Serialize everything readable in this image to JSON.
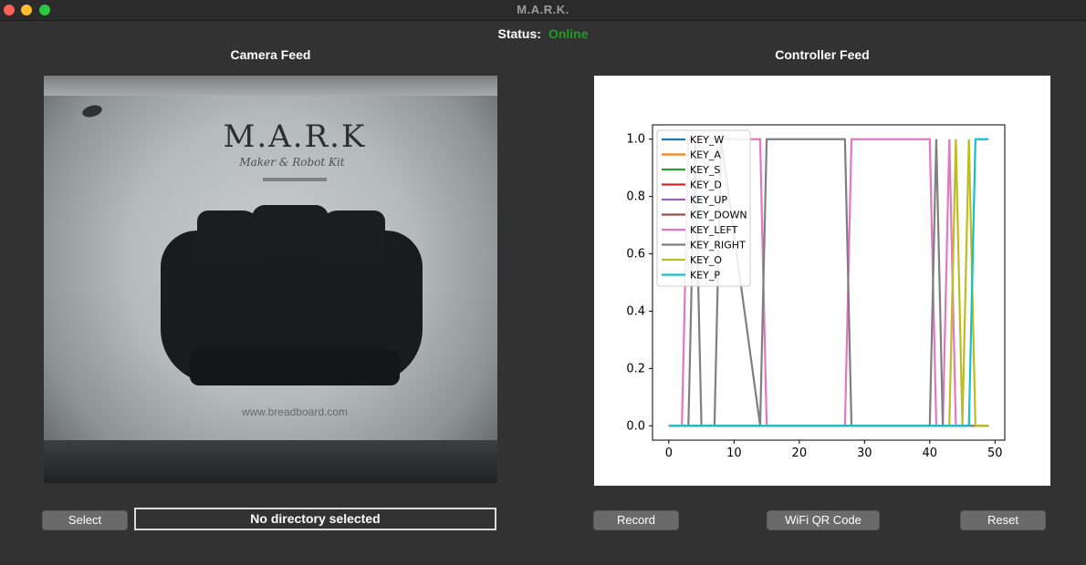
{
  "window": {
    "title": "M.A.R.K."
  },
  "status": {
    "label": "Status:",
    "value": "Online",
    "value_color": "#1f9d1f"
  },
  "camera": {
    "title": "Camera Feed",
    "scene": {
      "brand": "M.A.R.K",
      "subtitle": "Maker & Robot Kit",
      "url": "www.breadboard.com"
    }
  },
  "controller": {
    "title": "Controller Feed"
  },
  "buttons": {
    "select": "Select",
    "directory": "No directory selected",
    "record": "Record",
    "wifi_qr": "WiFi QR Code",
    "reset": "Reset"
  },
  "chart_data": {
    "type": "line",
    "xlim": [
      -2.5,
      51.5
    ],
    "ylim": [
      -0.05,
      1.05
    ],
    "xticks": [
      0,
      10,
      20,
      30,
      40,
      50
    ],
    "yticks": [
      0.0,
      0.2,
      0.4,
      0.6,
      0.8,
      1.0
    ],
    "legend_position": "upper-left",
    "series": [
      {
        "name": "KEY_W",
        "color": "#1f77b4",
        "x": [
          0,
          49
        ],
        "y": [
          0,
          0
        ]
      },
      {
        "name": "KEY_A",
        "color": "#ff7f0e",
        "x": [
          0,
          49
        ],
        "y": [
          0,
          0
        ]
      },
      {
        "name": "KEY_S",
        "color": "#2ca02c",
        "x": [
          0,
          49
        ],
        "y": [
          0,
          0
        ]
      },
      {
        "name": "KEY_D",
        "color": "#d62728",
        "x": [
          0,
          49
        ],
        "y": [
          0,
          0
        ]
      },
      {
        "name": "KEY_UP",
        "color": "#9467bd",
        "x": [
          0,
          49
        ],
        "y": [
          0,
          0
        ]
      },
      {
        "name": "KEY_DOWN",
        "color": "#8c564b",
        "x": [
          0,
          49
        ],
        "y": [
          0,
          0
        ]
      },
      {
        "name": "KEY_LEFT",
        "color": "#e377c2",
        "x": [
          0,
          2,
          3,
          14,
          15,
          27,
          28,
          40,
          41,
          42,
          43,
          44,
          45,
          49
        ],
        "y": [
          0,
          0,
          1,
          1,
          0,
          0,
          1,
          1,
          0,
          0,
          1,
          0,
          0,
          0
        ]
      },
      {
        "name": "KEY_RIGHT",
        "color": "#7f7f7f",
        "x": [
          0,
          3,
          4,
          5,
          7,
          8,
          14,
          15,
          27,
          28,
          40,
          41,
          42,
          43,
          49
        ],
        "y": [
          0,
          0,
          1,
          0,
          0,
          1,
          0,
          1,
          1,
          0,
          0,
          1,
          0,
          0,
          0
        ]
      },
      {
        "name": "KEY_O",
        "color": "#bcbd22",
        "x": [
          0,
          43,
          44,
          45,
          46,
          47,
          49
        ],
        "y": [
          0,
          0,
          1,
          0,
          1,
          0,
          0
        ]
      },
      {
        "name": "KEY_P",
        "color": "#17becf",
        "x": [
          0,
          46,
          47,
          48,
          49
        ],
        "y": [
          0,
          0,
          1,
          1,
          1
        ]
      }
    ]
  }
}
